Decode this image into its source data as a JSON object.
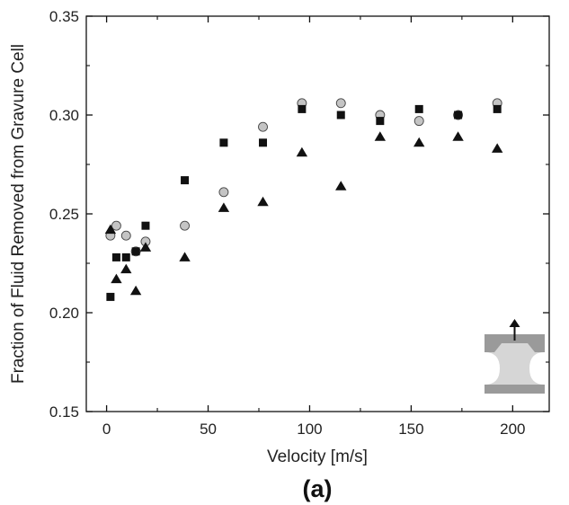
{
  "chart_data": {
    "type": "scatter",
    "xlabel": "Velocity [m/s]",
    "ylabel": "Fraction of Fluid Removed from Gravure Cell",
    "caption": "(a)",
    "xlim": [
      -10,
      218
    ],
    "ylim": [
      0.15,
      0.35
    ],
    "x_ticks": [
      0,
      50,
      100,
      150,
      200
    ],
    "y_ticks": [
      0.15,
      0.2,
      0.25,
      0.3,
      0.35
    ],
    "x_tick_labels": [
      "0",
      "50",
      "100",
      "150",
      "200"
    ],
    "y_tick_labels": [
      "0.15",
      "0.20",
      "0.25",
      "0.30",
      "0.35"
    ],
    "grid": false,
    "series": [
      {
        "marker": "circle",
        "color": "#c4c4c4",
        "points": [
          [
            1.9,
            0.239
          ],
          [
            4.8,
            0.244
          ],
          [
            9.6,
            0.239
          ],
          [
            14.4,
            0.231
          ],
          [
            19.2,
            0.236
          ],
          [
            38.5,
            0.244
          ],
          [
            57.7,
            0.261
          ],
          [
            77.0,
            0.294
          ],
          [
            96.2,
            0.306
          ],
          [
            115.4,
            0.306
          ],
          [
            134.7,
            0.3
          ],
          [
            153.9,
            0.297
          ],
          [
            173.1,
            0.3
          ],
          [
            192.4,
            0.306
          ]
        ]
      },
      {
        "marker": "square",
        "color": "#111111",
        "points": [
          [
            1.9,
            0.208
          ],
          [
            4.8,
            0.228
          ],
          [
            9.6,
            0.228
          ],
          [
            14.4,
            0.231
          ],
          [
            19.2,
            0.244
          ],
          [
            38.5,
            0.267
          ],
          [
            57.7,
            0.286
          ],
          [
            77.0,
            0.286
          ],
          [
            96.2,
            0.303
          ],
          [
            115.4,
            0.3
          ],
          [
            134.7,
            0.297
          ],
          [
            153.9,
            0.303
          ],
          [
            173.1,
            0.3
          ],
          [
            192.4,
            0.303
          ]
        ]
      },
      {
        "marker": "triangle",
        "color": "#111111",
        "points": [
          [
            1.9,
            0.242
          ],
          [
            4.8,
            0.217
          ],
          [
            9.6,
            0.222
          ],
          [
            14.4,
            0.211
          ],
          [
            19.2,
            0.233
          ],
          [
            38.5,
            0.228
          ],
          [
            57.7,
            0.253
          ],
          [
            77.0,
            0.256
          ],
          [
            96.2,
            0.281
          ],
          [
            115.4,
            0.264
          ],
          [
            134.7,
            0.289
          ],
          [
            153.9,
            0.286
          ],
          [
            173.1,
            0.289
          ],
          [
            192.4,
            0.283
          ]
        ]
      }
    ],
    "inset": {
      "placement": "bottom-right",
      "depicts": "gravure-cell-with-upward-arrow"
    }
  }
}
